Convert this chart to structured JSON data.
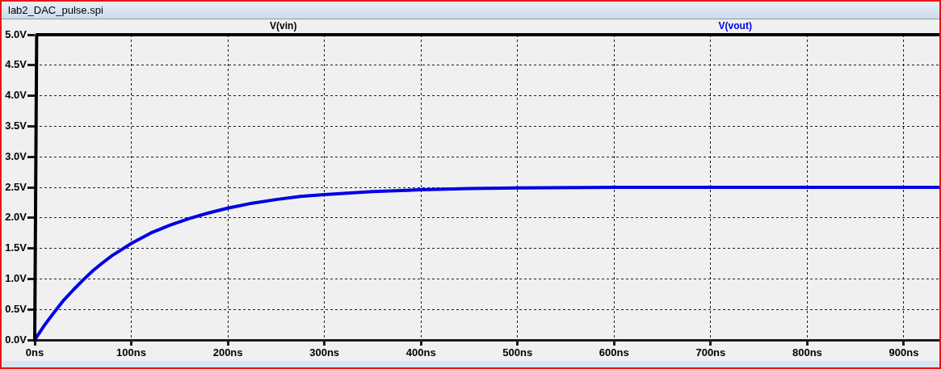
{
  "chart_data": {
    "type": "line",
    "title": "lab2_DAC_pulse.spi",
    "series": [
      {
        "name": "V(vin)",
        "color": "#000000",
        "x": [
          0,
          2,
          936
        ],
        "values": [
          0,
          5,
          5
        ]
      },
      {
        "name": "V(vout)",
        "color": "#0000e6",
        "x": [
          0,
          10,
          20,
          30,
          40,
          50,
          60,
          70,
          80,
          90,
          100,
          120,
          140,
          160,
          180,
          200,
          225,
          250,
          275,
          300,
          350,
          400,
          450,
          500,
          600,
          700,
          800,
          936
        ],
        "values": [
          0,
          0.24,
          0.45,
          0.65,
          0.82,
          0.98,
          1.13,
          1.26,
          1.38,
          1.48,
          1.58,
          1.75,
          1.88,
          1.99,
          2.08,
          2.16,
          2.24,
          2.3,
          2.35,
          2.38,
          2.43,
          2.46,
          2.48,
          2.49,
          2.5,
          2.5,
          2.5,
          2.5
        ]
      }
    ],
    "xlim": [
      0,
      936
    ],
    "ylim": [
      0,
      5
    ],
    "xticks": [
      {
        "value": 0,
        "label": "0ns"
      },
      {
        "value": 100,
        "label": "100ns"
      },
      {
        "value": 200,
        "label": "200ns"
      },
      {
        "value": 300,
        "label": "300ns"
      },
      {
        "value": 400,
        "label": "400ns"
      },
      {
        "value": 500,
        "label": "500ns"
      },
      {
        "value": 600,
        "label": "600ns"
      },
      {
        "value": 700,
        "label": "700ns"
      },
      {
        "value": 800,
        "label": "800ns"
      },
      {
        "value": 900,
        "label": "900ns"
      }
    ],
    "yticks": [
      {
        "value": 0,
        "label": "0.0V"
      },
      {
        "value": 0.5,
        "label": "0.5V"
      },
      {
        "value": 1,
        "label": "1.0V"
      },
      {
        "value": 1.5,
        "label": "1.5V"
      },
      {
        "value": 2,
        "label": "2.0V"
      },
      {
        "value": 2.5,
        "label": "2.5V"
      },
      {
        "value": 3,
        "label": "3.0V"
      },
      {
        "value": 3.5,
        "label": "3.5V"
      },
      {
        "value": 4,
        "label": "4.0V"
      },
      {
        "value": 4.5,
        "label": "4.5V"
      },
      {
        "value": 5,
        "label": "5.0V"
      }
    ],
    "grid": true,
    "legend": "top",
    "line_style": "solid"
  }
}
